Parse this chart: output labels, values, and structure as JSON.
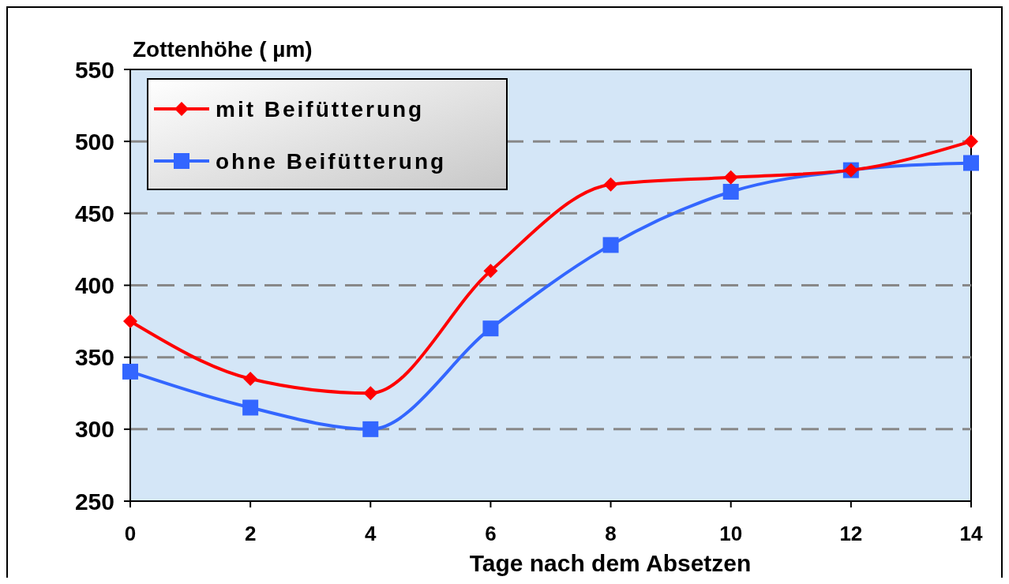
{
  "chart_data": {
    "type": "line",
    "ylabel": "Zottenhöhe ( µm)",
    "xlabel": "Tage nach dem Absetzen",
    "x": [
      0,
      2,
      4,
      6,
      8,
      10,
      12,
      14
    ],
    "series": [
      {
        "name": "mit Beifütterung",
        "color": "#ff0000",
        "marker": "diamond",
        "values": [
          375,
          335,
          325,
          410,
          470,
          475,
          480,
          500
        ]
      },
      {
        "name": "ohne Beifütterung",
        "color": "#3366ff",
        "marker": "square",
        "values": [
          340,
          315,
          300,
          370,
          428,
          465,
          480,
          485
        ]
      }
    ],
    "xlim": [
      0,
      14
    ],
    "xticks": [
      0,
      2,
      4,
      6,
      8,
      10,
      12,
      14
    ],
    "ylim": [
      250,
      550
    ],
    "yticks": [
      250,
      300,
      350,
      400,
      450,
      500,
      550
    ],
    "grid": "y",
    "legend": "top left",
    "line_style": "solid"
  }
}
